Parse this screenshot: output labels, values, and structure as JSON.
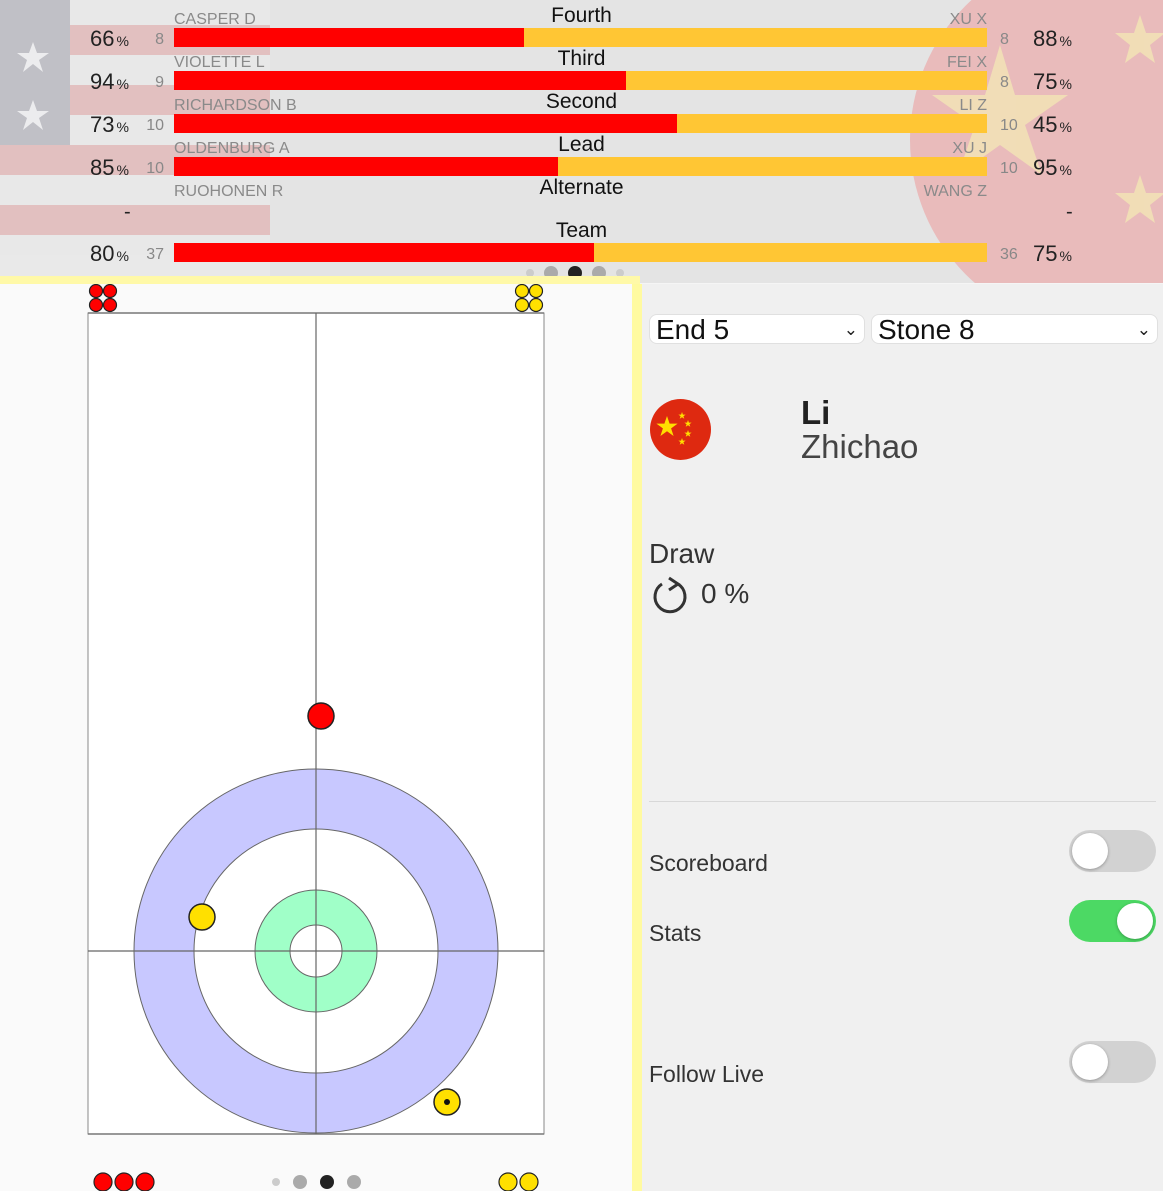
{
  "stats": {
    "rows": [
      {
        "position": "Fourth",
        "left_name": "CASPER D",
        "left_count": "8",
        "left_pct": "66",
        "right_name": "XU X",
        "right_count": "8",
        "right_pct": "88",
        "left_fraction": 0.43
      },
      {
        "position": "Third",
        "left_name": "VIOLETTE L",
        "left_count": "9",
        "left_pct": "94",
        "right_name": "FEI X",
        "right_count": "8",
        "right_pct": "75",
        "left_fraction": 0.556
      },
      {
        "position": "Second",
        "left_name": "RICHARDSON B",
        "left_count": "10",
        "left_pct": "73",
        "right_name": "LI Z",
        "right_count": "10",
        "right_pct": "45",
        "left_fraction": 0.619
      },
      {
        "position": "Lead",
        "left_name": "OLDENBURG A",
        "left_count": "10",
        "left_pct": "85",
        "right_name": "XU J",
        "right_count": "10",
        "right_pct": "95",
        "left_fraction": 0.472
      }
    ],
    "alternate": {
      "position": "Alternate",
      "left_name": "RUOHONEN R",
      "right_name": "WANG Z",
      "left_value": "-",
      "right_value": "-"
    },
    "team": {
      "position": "Team",
      "left_count": "37",
      "left_pct": "80",
      "right_count": "36",
      "right_pct": "75",
      "left_fraction": 0.516
    },
    "pct_symbol": "%"
  },
  "controls": {
    "end_select": "End 5",
    "stone_select": "Stone 8",
    "chevron": "⌄"
  },
  "player": {
    "flag_icon": "china-flag",
    "last_name": "Li",
    "first_name": "Zhichao"
  },
  "shot": {
    "type": "Draw",
    "rotation_icon": "counterclockwise-rotation-icon",
    "rotation_value": "0 %"
  },
  "toggles": [
    {
      "label": "Scoreboard",
      "on": false
    },
    {
      "label": "Stats",
      "on": true
    },
    {
      "label": "Follow Live",
      "on": false
    }
  ],
  "colors": {
    "team_red": "#ff0000",
    "team_yellow": "#ffc634",
    "house_outer": "#c8c8ff",
    "house_inner": "#a0ffc8",
    "toggle_on": "#4cd964"
  }
}
